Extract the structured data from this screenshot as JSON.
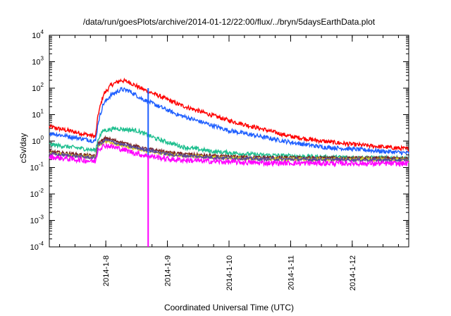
{
  "chart_data": {
    "type": "line",
    "title": "/data/run/goesPlots/archive/2014-01-12/22:00/flux/../bryn/5daysEarthData.plot",
    "xlabel": "Coordinated Universal Time (UTC)",
    "ylabel": "cSv/day",
    "x_scale": "time",
    "y_scale": "log",
    "xlim": [
      "2014-01-07T02:00",
      "2014-01-12T22:00"
    ],
    "ylim": [
      0.0001,
      10000
    ],
    "grid": false,
    "legend": "none",
    "x_ticks": [
      {
        "x": "2014-01-08T00:00",
        "label": "2014-1-8"
      },
      {
        "x": "2014-01-09T00:00",
        "label": "2014-1-9"
      },
      {
        "x": "2014-01-10T00:00",
        "label": "2014-1-10"
      },
      {
        "x": "2014-01-11T00:00",
        "label": "2014-1-11"
      },
      {
        "x": "2014-01-12T00:00",
        "label": "2014-1-12"
      }
    ],
    "y_ticks": [
      {
        "y": 0.0001,
        "base": "10",
        "exp": "-4"
      },
      {
        "y": 0.001,
        "base": "10",
        "exp": "-3"
      },
      {
        "y": 0.01,
        "base": "10",
        "exp": "-2"
      },
      {
        "y": 0.1,
        "base": "10",
        "exp": "-1"
      },
      {
        "y": 1,
        "base": "10",
        "exp": "0"
      },
      {
        "y": 10,
        "base": "10",
        "exp": "1"
      },
      {
        "y": 100,
        "base": "10",
        "exp": "2"
      },
      {
        "y": 1000,
        "base": "10",
        "exp": "3"
      },
      {
        "y": 10000,
        "base": "10",
        "exp": "4"
      }
    ],
    "series": [
      {
        "color": "#ff0000",
        "noise": 0.08,
        "points": [
          [
            "2014-01-07T02:00",
            3.5
          ],
          [
            "2014-01-07T20:00",
            1.5
          ],
          [
            "2014-01-07T21:00",
            10
          ],
          [
            "2014-01-07T23:00",
            55
          ],
          [
            "2014-01-08T02:00",
            130
          ],
          [
            "2014-01-08T06:00",
            200
          ],
          [
            "2014-01-08T09:00",
            170
          ],
          [
            "2014-01-08T14:00",
            95
          ],
          [
            "2014-01-08T20:00",
            55
          ],
          [
            "2014-01-09T04:00",
            25
          ],
          [
            "2014-01-09T14:00",
            12
          ],
          [
            "2014-01-10T00:00",
            6
          ],
          [
            "2014-01-10T12:00",
            3
          ],
          [
            "2014-01-11T00:00",
            1.5
          ],
          [
            "2014-01-11T12:00",
            1
          ],
          [
            "2014-01-12T00:00",
            0.75
          ],
          [
            "2014-01-12T22:00",
            0.5
          ]
        ]
      },
      {
        "color": "#1f5fff",
        "noise": 0.08,
        "points": [
          [
            "2014-01-07T02:00",
            2
          ],
          [
            "2014-01-07T20:00",
            1
          ],
          [
            "2014-01-07T21:00",
            5
          ],
          [
            "2014-01-07T23:00",
            25
          ],
          [
            "2014-01-08T02:00",
            55
          ],
          [
            "2014-01-08T06:00",
            90
          ],
          [
            "2014-01-08T09:00",
            80
          ],
          [
            "2014-01-08T14:00",
            40
          ],
          [
            "2014-01-08T20:00",
            22
          ],
          [
            "2014-01-09T04:00",
            10
          ],
          [
            "2014-01-09T14:00",
            5
          ],
          [
            "2014-01-10T00:00",
            2.5
          ],
          [
            "2014-01-10T12:00",
            1.5
          ],
          [
            "2014-01-11T00:00",
            0.9
          ],
          [
            "2014-01-11T12:00",
            0.6
          ],
          [
            "2014-01-12T00:00",
            0.5
          ],
          [
            "2014-01-12T22:00",
            0.35
          ]
        ]
      },
      {
        "color": "#1fbf8f",
        "noise": 0.08,
        "points": [
          [
            "2014-01-07T02:00",
            0.75
          ],
          [
            "2014-01-07T20:00",
            0.45
          ],
          [
            "2014-01-07T21:00",
            1.2
          ],
          [
            "2014-01-07T23:00",
            2.5
          ],
          [
            "2014-01-08T04:00",
            3
          ],
          [
            "2014-01-08T12:00",
            2.5
          ],
          [
            "2014-01-08T20:00",
            1.2
          ],
          [
            "2014-01-09T06:00",
            0.6
          ],
          [
            "2014-01-09T18:00",
            0.4
          ],
          [
            "2014-01-10T12:00",
            0.3
          ],
          [
            "2014-01-11T12:00",
            0.25
          ],
          [
            "2014-01-12T22:00",
            0.22
          ]
        ]
      },
      {
        "color": "#7a1f1f",
        "noise": 0.06,
        "points": [
          [
            "2014-01-07T02:00",
            0.4
          ],
          [
            "2014-01-07T20:00",
            0.27
          ],
          [
            "2014-01-07T21:00",
            0.8
          ],
          [
            "2014-01-08T00:00",
            1.3
          ],
          [
            "2014-01-08T06:00",
            0.9
          ],
          [
            "2014-01-08T14:00",
            0.55
          ],
          [
            "2014-01-09T02:00",
            0.35
          ],
          [
            "2014-01-09T18:00",
            0.27
          ],
          [
            "2014-01-10T12:00",
            0.24
          ],
          [
            "2014-01-12T22:00",
            0.22
          ]
        ]
      },
      {
        "color": "#d8d21f",
        "noise": 0.06,
        "points": [
          [
            "2014-01-07T02:00",
            0.35
          ],
          [
            "2014-01-07T20:00",
            0.24
          ],
          [
            "2014-01-07T21:00",
            0.65
          ],
          [
            "2014-01-08T00:00",
            1
          ],
          [
            "2014-01-08T06:00",
            0.7
          ],
          [
            "2014-01-08T14:00",
            0.45
          ],
          [
            "2014-01-09T02:00",
            0.3
          ],
          [
            "2014-01-09T18:00",
            0.24
          ],
          [
            "2014-01-10T12:00",
            0.21
          ],
          [
            "2014-01-12T22:00",
            0.2
          ]
        ]
      },
      {
        "color": "#5a4a9a",
        "noise": 0.06,
        "points": [
          [
            "2014-01-07T02:00",
            0.33
          ],
          [
            "2014-01-07T20:00",
            0.23
          ],
          [
            "2014-01-07T21:00",
            0.7
          ],
          [
            "2014-01-08T00:00",
            1.1
          ],
          [
            "2014-01-08T06:00",
            0.75
          ],
          [
            "2014-01-08T14:00",
            0.5
          ],
          [
            "2014-01-09T02:00",
            0.3
          ],
          [
            "2014-01-09T18:00",
            0.24
          ],
          [
            "2014-01-10T12:00",
            0.21
          ],
          [
            "2014-01-12T22:00",
            0.19
          ]
        ]
      },
      {
        "color": "#ff00ff",
        "noise": 0.1,
        "points": [
          [
            "2014-01-07T02:00",
            0.25
          ],
          [
            "2014-01-07T20:00",
            0.17
          ],
          [
            "2014-01-07T21:00",
            0.5
          ],
          [
            "2014-01-08T00:00",
            0.7
          ],
          [
            "2014-01-08T06:00",
            0.5
          ],
          [
            "2014-01-08T14:00",
            0.3
          ],
          [
            "2014-01-09T02:00",
            0.2
          ],
          [
            "2014-01-09T18:00",
            0.17
          ],
          [
            "2014-01-10T12:00",
            0.15
          ],
          [
            "2014-01-12T22:00",
            0.14
          ]
        ]
      }
    ],
    "spikes": [
      {
        "x": "2014-01-08T16:30",
        "y_from": 100,
        "y_to": 0.2,
        "color": "#1f5fff"
      },
      {
        "x": "2014-01-08T16:30",
        "y_from": 0.3,
        "y_to": 0.0001,
        "color": "#ff00ff"
      }
    ]
  }
}
